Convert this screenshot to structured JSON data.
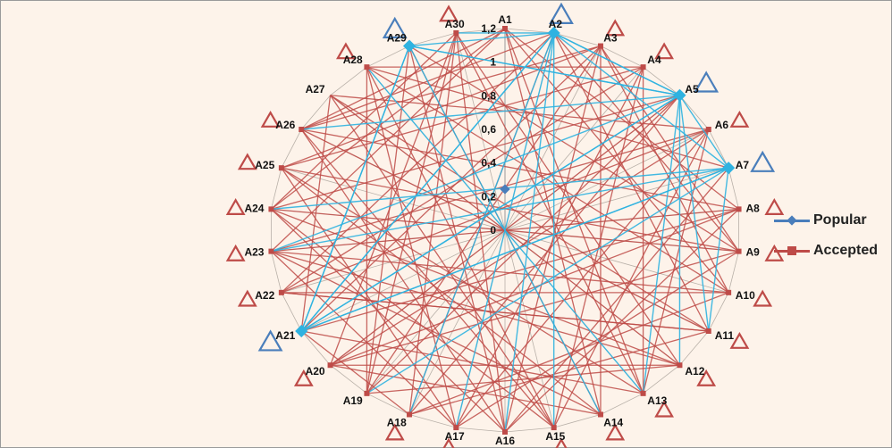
{
  "chart_data": {
    "type": "network-radar",
    "nodes": [
      "A1",
      "A2",
      "A3",
      "A4",
      "A5",
      "A6",
      "A7",
      "A8",
      "A9",
      "A10",
      "A11",
      "A12",
      "A13",
      "A14",
      "A15",
      "A16",
      "A17",
      "A18",
      "A19",
      "A20",
      "A21",
      "A22",
      "A23",
      "A24",
      "A25",
      "A26",
      "A27",
      "A28",
      "A29",
      "A30"
    ],
    "radial_ticks": [
      "0",
      "0,2",
      "0,4",
      "0,6",
      "0,8",
      "1",
      "1,2"
    ],
    "radial_range": [
      0,
      1.2
    ],
    "series": [
      {
        "name": "Popular",
        "color": "#4a7ebb",
        "marker": "diamond",
        "values": [
          0,
          1.2,
          0,
          0,
          1.2,
          0,
          1.2,
          0,
          0,
          0,
          0,
          0,
          0,
          0,
          0,
          0,
          0,
          0,
          0,
          0,
          1.2,
          0,
          0,
          0,
          0,
          0,
          0,
          0,
          1.2,
          0
        ]
      },
      {
        "name": "Accepted",
        "color": "#be4b48",
        "marker": "square",
        "values": [
          1.2,
          1.2,
          1.2,
          1.2,
          1.2,
          1.2,
          1.2,
          1.2,
          1.2,
          1.2,
          1.2,
          1.2,
          1.2,
          1.2,
          1.2,
          1.2,
          1.2,
          1.2,
          1.2,
          1.2,
          1.2,
          1.2,
          1.2,
          1.2,
          1.2,
          1.2,
          0,
          1.2,
          1.2,
          1.2
        ]
      }
    ],
    "edges": {
      "Popular": [
        [
          "A21",
          "A2"
        ],
        [
          "A21",
          "A5"
        ],
        [
          "A21",
          "A7"
        ],
        [
          "A21",
          "A29"
        ],
        [
          "A29",
          "A2"
        ],
        [
          "A29",
          "A5"
        ],
        [
          "A29",
          "A14"
        ],
        [
          "A29",
          "A21"
        ],
        [
          "A2",
          "A21"
        ],
        [
          "A2",
          "A5"
        ],
        [
          "A2",
          "A7"
        ],
        [
          "A2",
          "A15"
        ],
        [
          "A2",
          "A17"
        ],
        [
          "A5",
          "A21"
        ],
        [
          "A5",
          "A29"
        ],
        [
          "A5",
          "A11"
        ],
        [
          "A5",
          "A12"
        ],
        [
          "A5",
          "A2"
        ],
        [
          "A7",
          "A21"
        ],
        [
          "A7",
          "A23"
        ],
        [
          "A7",
          "A19"
        ],
        [
          "A7",
          "A11"
        ],
        [
          "A7",
          "A5"
        ],
        [
          "A24",
          "A7"
        ],
        [
          "A18",
          "A2"
        ],
        [
          "A13",
          "A5"
        ],
        [
          "A26",
          "A5"
        ],
        [
          "A28",
          "A13"
        ],
        [
          "A30",
          "A2"
        ],
        [
          "A23",
          "A5"
        ],
        [
          "A16",
          "A2"
        ]
      ],
      "Accepted": [
        [
          "A1",
          "A23"
        ],
        [
          "A1",
          "A14"
        ],
        [
          "A1",
          "A8"
        ],
        [
          "A1",
          "A26"
        ],
        [
          "A2",
          "A18"
        ],
        [
          "A2",
          "A11"
        ],
        [
          "A2",
          "A26"
        ],
        [
          "A3",
          "A21"
        ],
        [
          "A3",
          "A16"
        ],
        [
          "A3",
          "A9"
        ],
        [
          "A4",
          "A22"
        ],
        [
          "A4",
          "A17"
        ],
        [
          "A4",
          "A28"
        ],
        [
          "A5",
          "A24"
        ],
        [
          "A5",
          "A19"
        ],
        [
          "A6",
          "A20"
        ],
        [
          "A6",
          "A13"
        ],
        [
          "A6",
          "A27"
        ],
        [
          "A6",
          "A15"
        ],
        [
          "A8",
          "A23"
        ],
        [
          "A8",
          "A20"
        ],
        [
          "A9",
          "A24"
        ],
        [
          "A9",
          "A2"
        ],
        [
          "A9",
          "A17"
        ],
        [
          "A10",
          "A22"
        ],
        [
          "A10",
          "A3"
        ],
        [
          "A10",
          "A28"
        ],
        [
          "A11",
          "A26"
        ],
        [
          "A11",
          "A18"
        ],
        [
          "A12",
          "A23"
        ],
        [
          "A12",
          "A30"
        ],
        [
          "A12",
          "A20"
        ],
        [
          "A13",
          "A25"
        ],
        [
          "A13",
          "A1"
        ],
        [
          "A14",
          "A29"
        ],
        [
          "A14",
          "A23"
        ],
        [
          "A15",
          "A26"
        ],
        [
          "A15",
          "A4"
        ],
        [
          "A16",
          "A30"
        ],
        [
          "A16",
          "A24"
        ],
        [
          "A17",
          "A28"
        ],
        [
          "A17",
          "A6"
        ],
        [
          "A18",
          "A30"
        ],
        [
          "A18",
          "A10"
        ],
        [
          "A19",
          "A3"
        ],
        [
          "A19",
          "A12"
        ],
        [
          "A20",
          "A5"
        ],
        [
          "A20",
          "A14"
        ],
        [
          "A21",
          "A8"
        ],
        [
          "A21",
          "A13"
        ],
        [
          "A22",
          "A2"
        ],
        [
          "A22",
          "A11"
        ],
        [
          "A23",
          "A10"
        ],
        [
          "A23",
          "A6"
        ],
        [
          "A24",
          "A12"
        ],
        [
          "A24",
          "A1"
        ],
        [
          "A25",
          "A9"
        ],
        [
          "A25",
          "A14"
        ],
        [
          "A26",
          "A16"
        ],
        [
          "A26",
          "A8"
        ],
        [
          "A27",
          "A11"
        ],
        [
          "A28",
          "A15"
        ],
        [
          "A28",
          "A7"
        ],
        [
          "A29",
          "A16"
        ],
        [
          "A29",
          "A9"
        ],
        [
          "A30",
          "A13"
        ],
        [
          "A30",
          "A19"
        ],
        [
          "A22",
          "A6"
        ],
        [
          "A25",
          "A4"
        ],
        [
          "A19",
          "A29"
        ],
        [
          "A18",
          "A5"
        ],
        [
          "A16",
          "A8"
        ],
        [
          "A15",
          "A27"
        ],
        [
          "A14",
          "A3"
        ],
        [
          "A11",
          "A22"
        ],
        [
          "A10",
          "A1"
        ],
        [
          "A17",
          "A25"
        ],
        [
          "A12",
          "A27"
        ],
        [
          "A9",
          "A20"
        ],
        [
          "A7",
          "A16"
        ],
        [
          "A3",
          "A25"
        ],
        [
          "A4",
          "A13"
        ],
        [
          "A27",
          "A21"
        ],
        [
          "A30",
          "A24"
        ],
        [
          "A28",
          "A19"
        ],
        [
          "A26",
          "A3"
        ],
        [
          "A24",
          "A15"
        ],
        [
          "A23",
          "A17"
        ],
        [
          "A21",
          "A18"
        ],
        [
          "A20",
          "A30"
        ]
      ]
    },
    "grid": true,
    "legend_position": "right",
    "markers": {
      "blue_outline": [
        "A2",
        "A5",
        "A7",
        "A21",
        "A29"
      ],
      "red_outline": [
        "A3",
        "A4",
        "A6",
        "A8",
        "A9",
        "A10",
        "A11",
        "A12",
        "A13",
        "A14",
        "A15",
        "A17",
        "A18",
        "A20",
        "A22",
        "A23",
        "A24",
        "A25",
        "A26",
        "A28",
        "A30"
      ]
    }
  }
}
